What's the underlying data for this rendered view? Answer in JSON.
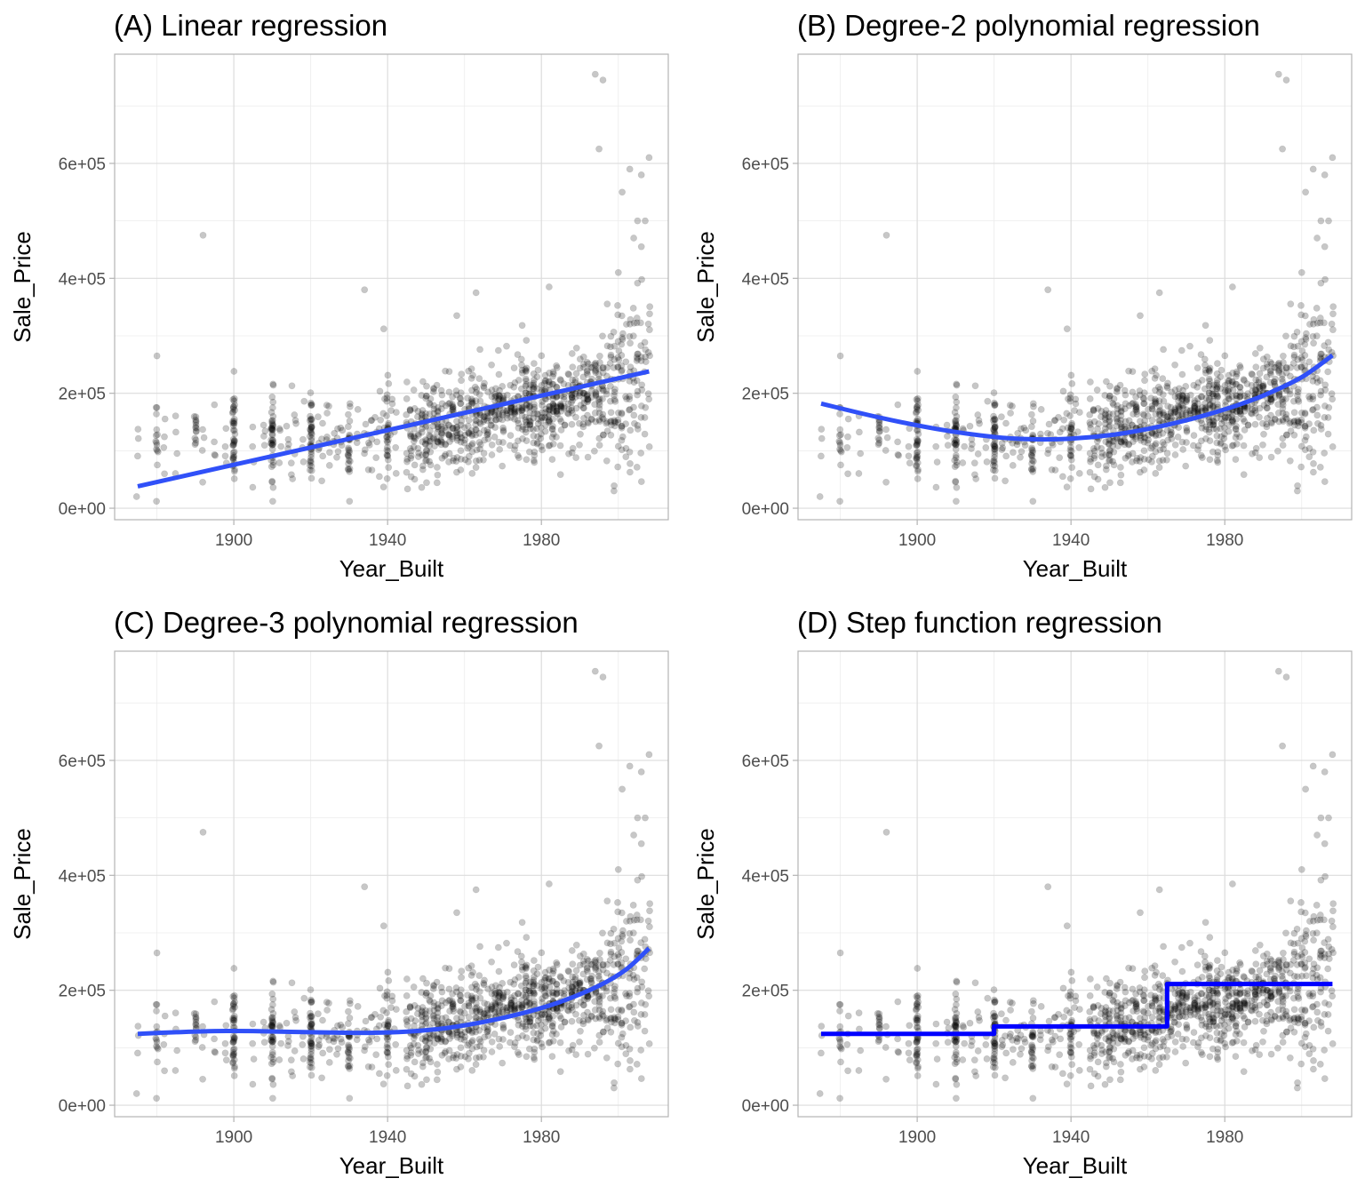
{
  "figure": {
    "layout": "2x2 grid"
  },
  "chart_data": [
    {
      "type": "scatter",
      "panel": "A",
      "title": "(A) Linear regression",
      "xlabel": "Year_Built",
      "ylabel": "Sale_Price",
      "xlim": [
        1869,
        2013
      ],
      "ylim": [
        -20000,
        790000
      ],
      "xticks": [
        1900,
        1940,
        1980
      ],
      "xtick_labels": [
        "1900",
        "1940",
        "1980"
      ],
      "yticks": [
        0,
        200000,
        400000,
        600000
      ],
      "ytick_labels": [
        "0e+00",
        "2e+05",
        "4e+05",
        "6e+05"
      ],
      "grid": true,
      "fit": {
        "name": "Linear fit",
        "kind": "line",
        "color": "#3050F8",
        "x": [
          1875,
          2008
        ],
        "y": [
          38000,
          238000
        ]
      }
    },
    {
      "type": "scatter",
      "panel": "B",
      "title": "(B) Degree-2 polynomial regression",
      "xlabel": "Year_Built",
      "ylabel": "Sale_Price",
      "xlim": [
        1869,
        2013
      ],
      "ylim": [
        -20000,
        790000
      ],
      "xticks": [
        1900,
        1940,
        1980
      ],
      "xtick_labels": [
        "1900",
        "1940",
        "1980"
      ],
      "yticks": [
        0,
        200000,
        400000,
        600000
      ],
      "ytick_labels": [
        "0e+00",
        "2e+05",
        "4e+05",
        "6e+05"
      ],
      "grid": true,
      "fit": {
        "name": "Degree-2 fit",
        "kind": "curve",
        "color": "#3050F8",
        "x": [
          1875,
          1890,
          1905,
          1920,
          1930,
          1940,
          1950,
          1960,
          1970,
          1980,
          1990,
          2000,
          2008
        ],
        "y": [
          182000,
          158000,
          138000,
          124000,
          120000,
          121000,
          127000,
          138000,
          153000,
          172000,
          196000,
          228000,
          266000
        ]
      }
    },
    {
      "type": "scatter",
      "panel": "C",
      "title": "(C) Degree-3 polynomial regression",
      "xlabel": "Year_Built",
      "ylabel": "Sale_Price",
      "xlim": [
        1869,
        2013
      ],
      "ylim": [
        -20000,
        790000
      ],
      "xticks": [
        1900,
        1940,
        1980
      ],
      "xtick_labels": [
        "1900",
        "1940",
        "1980"
      ],
      "yticks": [
        0,
        200000,
        400000,
        600000
      ],
      "ytick_labels": [
        "0e+00",
        "2e+05",
        "4e+05",
        "6e+05"
      ],
      "grid": true,
      "fit": {
        "name": "Degree-3 fit",
        "kind": "curve",
        "color": "#3050F8",
        "x": [
          1875,
          1885,
          1895,
          1905,
          1920,
          1935,
          1945,
          1955,
          1965,
          1975,
          1985,
          1995,
          2002,
          2008
        ],
        "y": [
          124000,
          127000,
          129000,
          129000,
          127000,
          126000,
          128000,
          134000,
          145000,
          160000,
          180000,
          208000,
          236000,
          273000
        ]
      }
    },
    {
      "type": "scatter",
      "panel": "D",
      "title": "(D) Step function regression",
      "xlabel": "Year_Built",
      "ylabel": "Sale_Price",
      "xlim": [
        1869,
        2013
      ],
      "ylim": [
        -20000,
        790000
      ],
      "xticks": [
        1900,
        1940,
        1980
      ],
      "xtick_labels": [
        "1900",
        "1940",
        "1980"
      ],
      "yticks": [
        0,
        200000,
        400000,
        600000
      ],
      "ytick_labels": [
        "0e+00",
        "2e+05",
        "4e+05",
        "6e+05"
      ],
      "grid": true,
      "fit": {
        "name": "Step fit",
        "kind": "step",
        "color": "#0000FF",
        "breaks": [
          1875,
          1920,
          1965,
          2008
        ],
        "levels": [
          124000,
          137000,
          211000
        ]
      }
    }
  ]
}
